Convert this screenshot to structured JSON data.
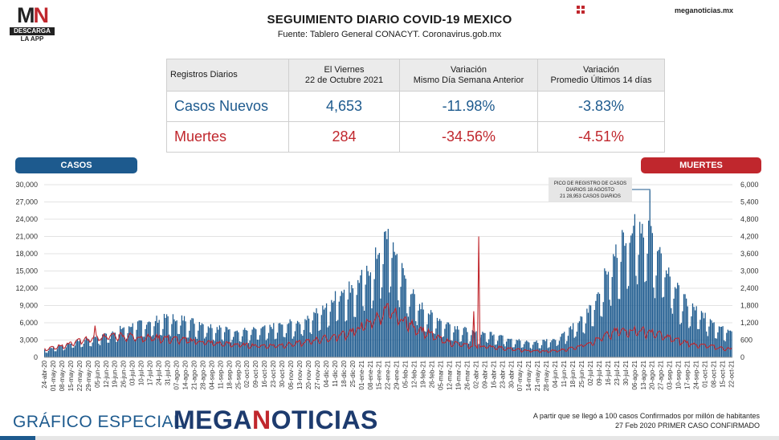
{
  "brand": {
    "logo_text": "MN",
    "logo_badge": "DESCARGA",
    "logo_sub": "LA APP",
    "site": "meganoticias.mx",
    "footer_left": "GRÁFICO ESPECIAL",
    "footer_brand": "MEGANOTICIAS"
  },
  "header": {
    "title": "SEGUIMIENTO DIARIO COVID-19 MEXICO",
    "subtitle": "Fuente: Tablero General CONACYT. Coronavirus.gob.mx"
  },
  "stats_table": {
    "headers": [
      "Registros Diarios",
      "El Viernes\n22 de Octubre 2021",
      "Variación\nMismo Día Semana Anterior",
      "Variación\nPromedio Últimos 14 días"
    ],
    "rows": [
      {
        "label": "Casos Nuevos",
        "value": "4,653",
        "var_week": "-11.98%",
        "var_14": "-3.83%"
      },
      {
        "label": "Muertes",
        "value": "284",
        "var_week": "-34.56%",
        "var_14": "-4.51%"
      }
    ]
  },
  "legend": {
    "casos_label": "CASOS",
    "muertes_label": "MUERTES"
  },
  "footnote": {
    "line1": "A partir que se llegó a 100 casos Confirmados por millón de habitantes",
    "line2": "27 Feb 2020 PRIMER CASO CONFIRMADO"
  },
  "colors": {
    "cases": "#1d5a8e",
    "deaths": "#c0272d"
  },
  "chart_data": {
    "type": "bar",
    "start_date": "2020-04-24",
    "end_date": "2021-10-22",
    "y_left": {
      "label": "CASOS",
      "range": [
        0,
        30000
      ],
      "ticks": [
        "0",
        "3,000",
        "6,000",
        "9,000",
        "12,000",
        "15,000",
        "18,000",
        "21,000",
        "24,000",
        "27,000",
        "30,000"
      ]
    },
    "y_right": {
      "label": "MUERTES",
      "range": [
        0,
        6000
      ],
      "ticks": [
        "0",
        "600",
        "1,200",
        "1,800",
        "2,400",
        "3,000",
        "3,600",
        "4,200",
        "4,800",
        "5,400",
        "6,000"
      ]
    },
    "x_tick_labels": [
      "24-abr-20",
      "01-may-20",
      "08-may-20",
      "15-may-20",
      "22-may-20",
      "29-may-20",
      "05-jun-20",
      "12-jun-20",
      "19-jun-20",
      "26-jun-20",
      "03-jul-20",
      "10-jul-20",
      "17-jul-20",
      "24-jul-20",
      "31-jul-20",
      "07-ago-20",
      "14-ago-20",
      "21-ago-20",
      "28-ago-20",
      "04-sep-20",
      "11-sep-20",
      "18-sep-20",
      "25-sep-20",
      "02-oct-20",
      "09-oct-20",
      "16-oct-20",
      "23-oct-20",
      "30-oct-20",
      "06-nov-20",
      "13-nov-20",
      "20-nov-20",
      "27-nov-20",
      "04-dic-20",
      "11-dic-20",
      "18-dic-20",
      "25-dic-20",
      "01-ene-21",
      "08-ene-21",
      "15-ene-21",
      "22-ene-21",
      "29-ene-21",
      "05-feb-21",
      "12-feb-21",
      "19-feb-21",
      "26-feb-21",
      "05-mar-21",
      "12-mar-21",
      "19-mar-21",
      "26-mar-21",
      "02-abr-21",
      "09-abr-21",
      "16-abr-21",
      "23-abr-21",
      "30-abr-21",
      "07-may-21",
      "14-may-21",
      "21-may-21",
      "28-may-21",
      "04-jun-21",
      "11-jun-21",
      "18-jun-21",
      "25-jun-21",
      "02-jul-21",
      "09-jul-21",
      "16-jul-21",
      "23-jul-21",
      "30-jul-21",
      "06-ago-21",
      "13-ago-21",
      "20-ago-21",
      "27-ago-21",
      "03-sep-21",
      "10-sep-21",
      "17-sep-21",
      "24-sep-21",
      "01-oct-21",
      "08-oct-21",
      "15-oct-21",
      "22-oct-21"
    ],
    "series": [
      {
        "name": "CASOS",
        "kind": "bar",
        "weekly_values": [
          1300,
          1700,
          2100,
          2500,
          2900,
          3200,
          3600,
          4000,
          4500,
          5000,
          5400,
          5700,
          6200,
          6400,
          6700,
          6600,
          6400,
          6000,
          5800,
          5300,
          5000,
          4800,
          4600,
          4500,
          4700,
          4900,
          5200,
          5500,
          5800,
          6100,
          6800,
          7800,
          9000,
          10500,
          11500,
          12000,
          13500,
          15000,
          18000,
          21000,
          17000,
          13000,
          10000,
          8200,
          7000,
          6300,
          5500,
          5000,
          4500,
          4000,
          4200,
          4000,
          3600,
          3200,
          2800,
          2600,
          2600,
          2900,
          3200,
          4200,
          5200,
          6500,
          8500,
          11500,
          15000,
          18000,
          21000,
          23500,
          22000,
          20000,
          17000,
          14000,
          11000,
          9000,
          8000,
          7000,
          6000,
          5200,
          4700
        ]
      },
      {
        "name": "MUERTES",
        "kind": "line",
        "weekly_values": [
          300,
          350,
          420,
          500,
          600,
          650,
          720,
          760,
          800,
          780,
          760,
          720,
          720,
          700,
          680,
          650,
          620,
          600,
          560,
          520,
          500,
          480,
          460,
          440,
          430,
          420,
          430,
          450,
          480,
          520,
          580,
          650,
          700,
          760,
          850,
          950,
          1100,
          1300,
          1500,
          1700,
          1500,
          1300,
          1100,
          950,
          800,
          650,
          550,
          480,
          420,
          380,
          400,
          380,
          340,
          300,
          260,
          240,
          230,
          220,
          240,
          280,
          350,
          450,
          550,
          680,
          820,
          950,
          1000,
          980,
          950,
          900,
          800,
          700,
          600,
          520,
          460,
          420,
          380,
          330,
          300
        ]
      }
    ],
    "annotations": [
      {
        "text": "PICO DE REGISTRO DE CASOS DIARIOS 18 AGOSTO 21 28,953 CASOS DIARIOS",
        "series": "CASOS",
        "date": "2021-08-18",
        "value": 28953
      },
      {
        "text": "",
        "series": "MUERTES",
        "date": "2021-04-04",
        "value": 4200
      },
      {
        "text": "",
        "series": "MUERTES",
        "date": "2021-03-31",
        "value": 1600
      },
      {
        "text": "",
        "series": "MUERTES",
        "date": "2020-06-03",
        "value": 1100
      }
    ]
  }
}
